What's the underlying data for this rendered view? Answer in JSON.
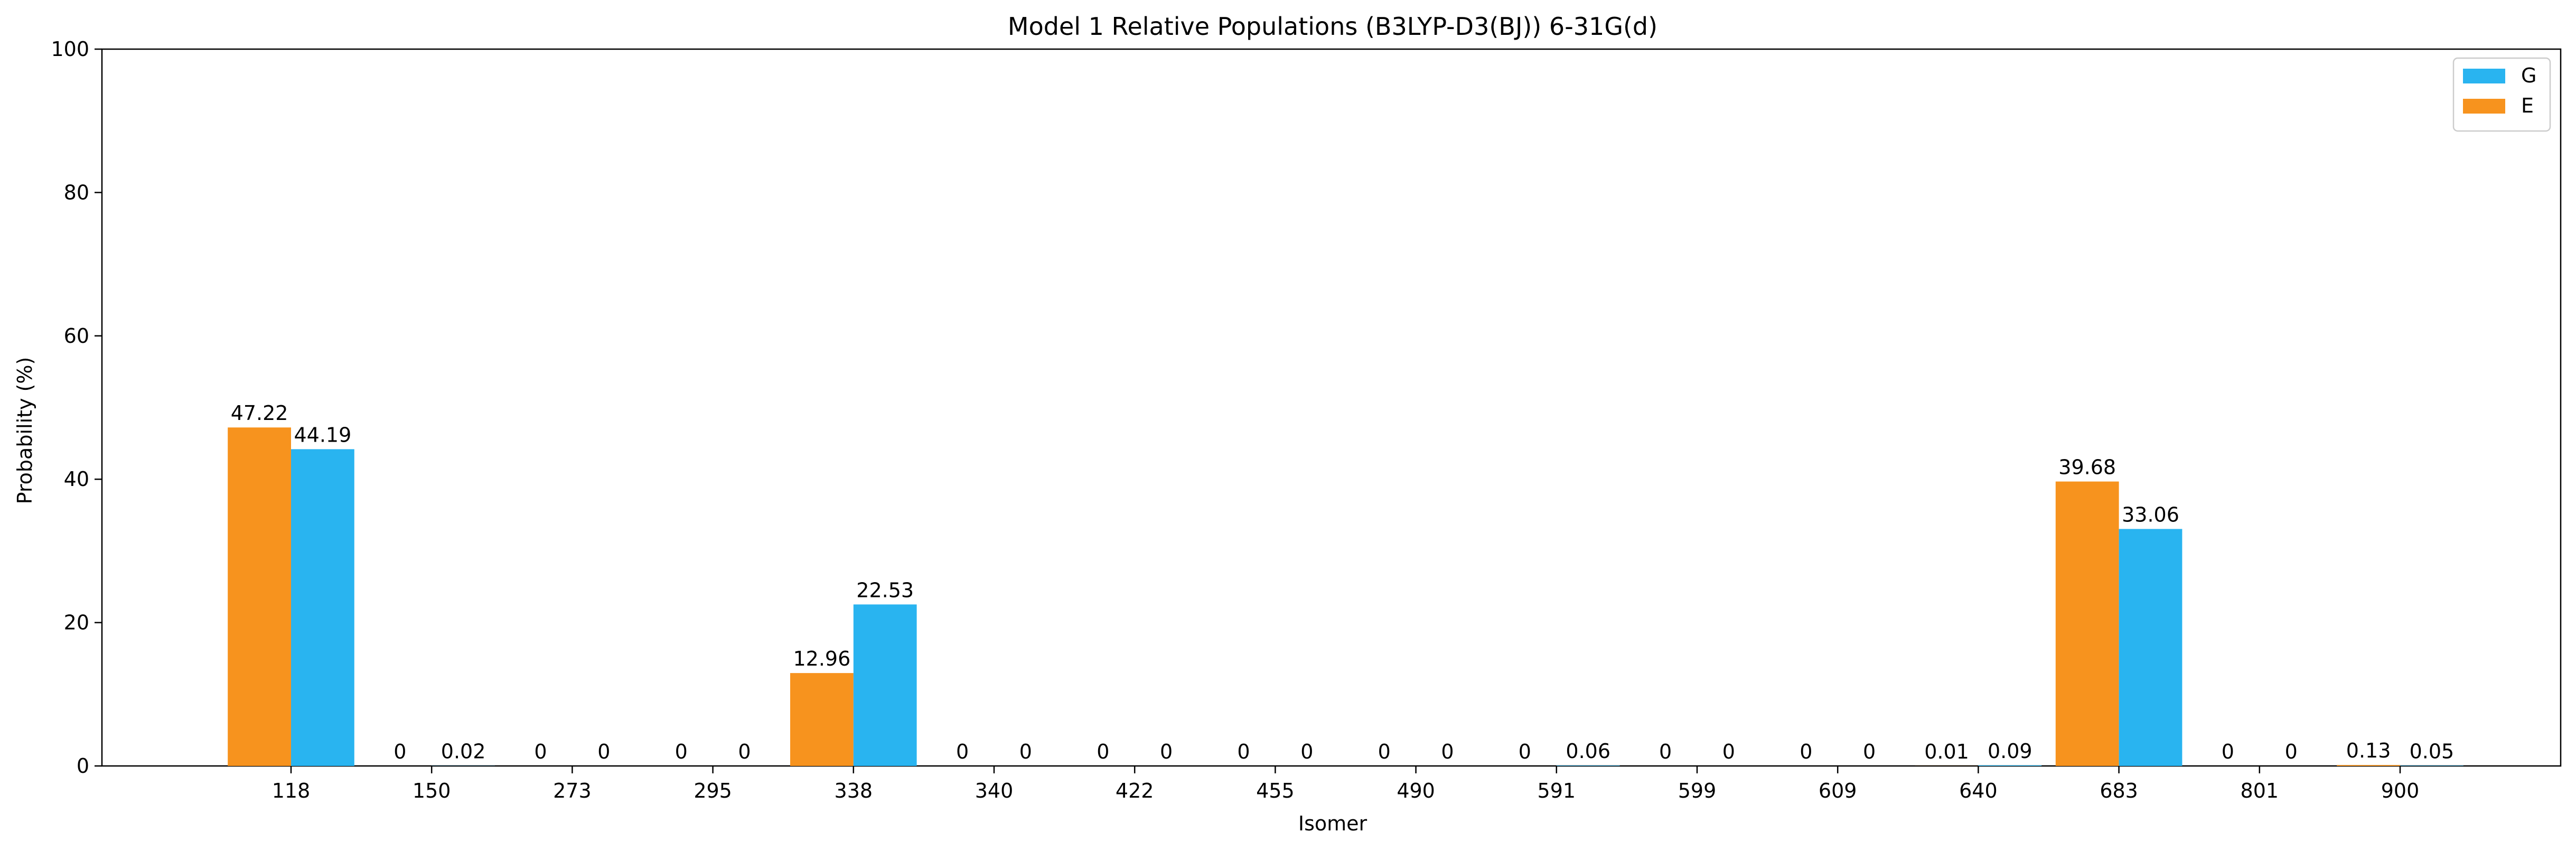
{
  "chart_data": {
    "type": "bar",
    "title": "Model 1 Relative Populations (B3LYP-D3(BJ)) 6-31G(d)",
    "xlabel": "Isomer",
    "ylabel": "Probability (%)",
    "ylim": [
      0,
      100
    ],
    "yticks": [
      "0",
      "20",
      "40",
      "60",
      "80",
      "100"
    ],
    "categories": [
      "118",
      "150",
      "273",
      "295",
      "338",
      "340",
      "422",
      "455",
      "490",
      "591",
      "599",
      "609",
      "640",
      "683",
      "801",
      "900"
    ],
    "series": [
      {
        "name": "E",
        "color": "#F7931E",
        "values": [
          47.22,
          0,
          0,
          0,
          12.96,
          0,
          0,
          0,
          0,
          0,
          0,
          0,
          0.01,
          39.68,
          0,
          0.13
        ],
        "labels": [
          "47.22",
          "0",
          "0",
          "0",
          "12.96",
          "0",
          "0",
          "0",
          "0",
          "0",
          "0",
          "0",
          "0.01",
          "39.68",
          "0",
          "0.13"
        ]
      },
      {
        "name": "G",
        "color": "#29B4F0",
        "values": [
          44.19,
          0.02,
          0,
          0,
          22.53,
          0,
          0,
          0,
          0,
          0.06,
          0,
          0,
          0.09,
          33.06,
          0,
          0.05
        ],
        "labels": [
          "44.19",
          "0.02",
          "0",
          "0",
          "22.53",
          "0",
          "0",
          "0",
          "0",
          "0.06",
          "0",
          "0",
          "0.09",
          "33.06",
          "0",
          "0.05"
        ]
      }
    ],
    "legend": {
      "placement": "top-right",
      "entries": [
        {
          "name": "G",
          "color": "#29B4F0"
        },
        {
          "name": "E",
          "color": "#F7931E"
        }
      ]
    },
    "grid": false
  }
}
